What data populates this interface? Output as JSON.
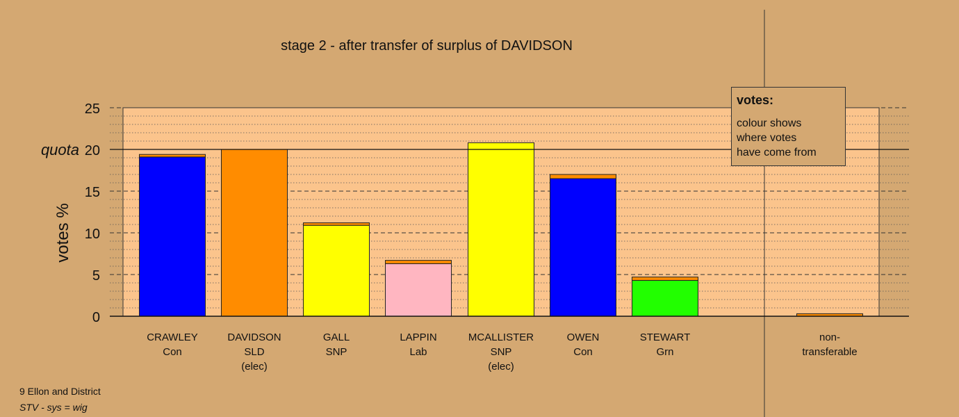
{
  "chart_data": {
    "type": "bar",
    "stacked": true,
    "title": "stage 2 - after transfer of surplus of DAVIDSON",
    "ylabel": "votes %",
    "ylim": [
      0,
      25
    ],
    "yticks": [
      0,
      5,
      10,
      15,
      20,
      25
    ],
    "quota": {
      "label": "quota",
      "value": 20
    },
    "grid": true,
    "categories": [
      {
        "name": "CRAWLEY",
        "party": "Con",
        "status": ""
      },
      {
        "name": "DAVIDSON",
        "party": "SLD",
        "status": "(elec)"
      },
      {
        "name": "GALL",
        "party": "SNP",
        "status": ""
      },
      {
        "name": "LAPPIN",
        "party": "Lab",
        "status": ""
      },
      {
        "name": "MCALLISTER",
        "party": "SNP",
        "status": "(elec)"
      },
      {
        "name": "OWEN",
        "party": "Con",
        "status": ""
      },
      {
        "name": "STEWART",
        "party": "Grn",
        "status": ""
      }
    ],
    "nontransferable": {
      "line1": "non-",
      "line2": "transferable",
      "value": 0.3,
      "color": "#FF8C00"
    },
    "bars": [
      {
        "segments": [
          {
            "value": 19.1,
            "color": "#0000FF"
          },
          {
            "value": 0.3,
            "color": "#FF8C00"
          }
        ]
      },
      {
        "segments": [
          {
            "value": 20.0,
            "color": "#FF8C00"
          }
        ]
      },
      {
        "segments": [
          {
            "value": 10.9,
            "color": "#FFFF00"
          },
          {
            "value": 0.3,
            "color": "#FF8C00"
          }
        ]
      },
      {
        "segments": [
          {
            "value": 6.3,
            "color": "#FFB6C1"
          },
          {
            "value": 0.4,
            "color": "#FF8C00"
          }
        ]
      },
      {
        "segments": [
          {
            "value": 20.8,
            "color": "#FFFF00"
          }
        ]
      },
      {
        "segments": [
          {
            "value": 16.5,
            "color": "#0000FF"
          },
          {
            "value": 0.5,
            "color": "#FF8C00"
          }
        ]
      },
      {
        "segments": [
          {
            "value": 4.3,
            "color": "#22FF00"
          },
          {
            "value": 0.4,
            "color": "#FF8C00"
          }
        ]
      }
    ]
  },
  "legend": {
    "title": "votes:",
    "lines": [
      "colour shows",
      "where votes",
      "have come from"
    ]
  },
  "footer": {
    "line1": "9 Ellon and District",
    "line2": "STV - sys = wig"
  },
  "colors": {
    "background": "#D4A872",
    "plot_background": "#FBC48C"
  }
}
